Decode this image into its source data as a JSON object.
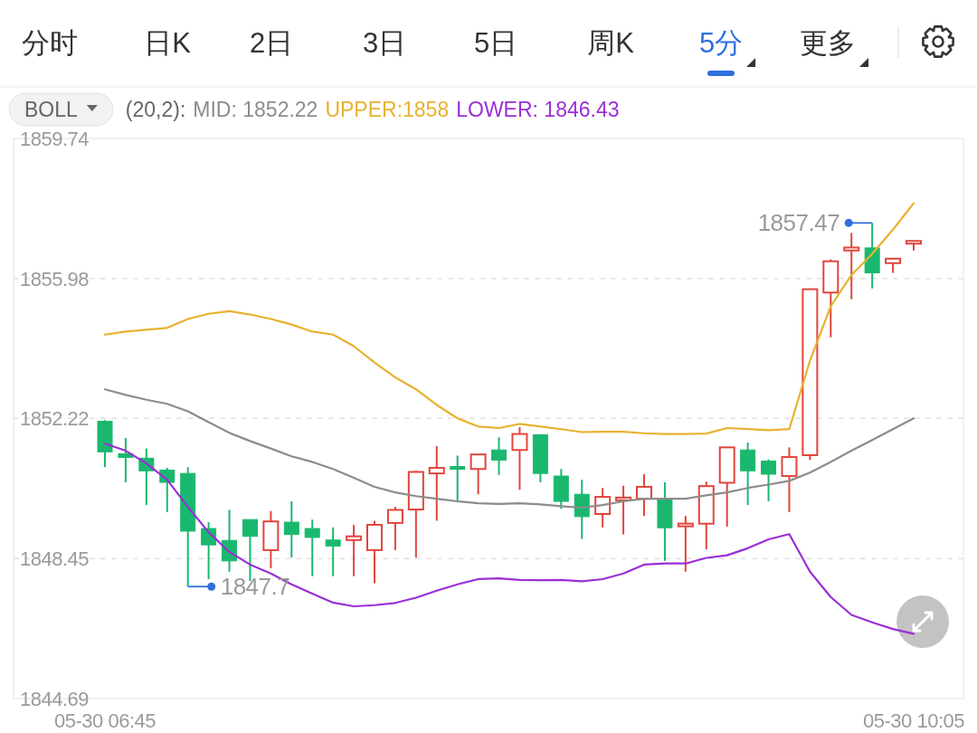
{
  "chart_data": {
    "type": "candlestick",
    "categories": [
      "05-30 06:45",
      null,
      null,
      null,
      null,
      null,
      null,
      null,
      null,
      null,
      null,
      null,
      null,
      null,
      null,
      null,
      null,
      null,
      null,
      null,
      null,
      null,
      null,
      null,
      null,
      null,
      null,
      null,
      null,
      null,
      null,
      null,
      null,
      null,
      null,
      null,
      null,
      null,
      null,
      "05-30 10:05"
    ],
    "ohlc": [
      [
        1852.14,
        1852.17,
        1850.91,
        1851.32
      ],
      [
        1851.27,
        1851.69,
        1850.5,
        1851.17
      ],
      [
        1851.15,
        1851.41,
        1849.89,
        1850.81
      ],
      [
        1850.83,
        1850.89,
        1849.7,
        1850.5
      ],
      [
        1850.74,
        1850.91,
        1847.7,
        1849.19
      ],
      [
        1849.26,
        1849.43,
        1847.9,
        1848.82
      ],
      [
        1848.94,
        1849.76,
        1848.1,
        1848.39
      ],
      [
        1849.5,
        1849.5,
        1847.85,
        1849.05
      ],
      [
        1848.68,
        1849.73,
        1848.19,
        1849.45
      ],
      [
        1849.43,
        1849.99,
        1848.48,
        1849.1
      ],
      [
        1849.26,
        1849.5,
        1847.98,
        1849.02
      ],
      [
        1848.95,
        1849.29,
        1847.98,
        1848.79
      ],
      [
        1848.95,
        1849.36,
        1847.98,
        1849.05
      ],
      [
        1848.68,
        1849.47,
        1847.79,
        1849.36
      ],
      [
        1849.41,
        1849.84,
        1848.68,
        1849.76
      ],
      [
        1849.77,
        1850.81,
        1848.48,
        1850.78
      ],
      [
        1850.74,
        1851.47,
        1849.47,
        1850.89
      ],
      [
        1850.9,
        1851.22,
        1849.99,
        1850.88
      ],
      [
        1850.86,
        1851.25,
        1850.18,
        1851.25
      ],
      [
        1851.37,
        1851.71,
        1850.7,
        1851.1
      ],
      [
        1851.37,
        1851.98,
        1850.3,
        1851.8
      ],
      [
        1851.78,
        1851.78,
        1850.5,
        1850.74
      ],
      [
        1850.67,
        1850.86,
        1849.79,
        1849.99
      ],
      [
        1850.18,
        1850.57,
        1848.98,
        1849.58
      ],
      [
        1849.65,
        1850.35,
        1849.29,
        1850.11
      ],
      [
        1850.04,
        1850.41,
        1849.1,
        1850.07
      ],
      [
        1850.06,
        1850.72,
        1849.6,
        1850.38
      ],
      [
        1850.06,
        1850.5,
        1848.39,
        1849.28
      ],
      [
        1849.34,
        1849.6,
        1848.1,
        1849.37
      ],
      [
        1849.39,
        1850.52,
        1848.7,
        1850.4
      ],
      [
        1850.49,
        1851.44,
        1849.31,
        1851.44
      ],
      [
        1851.37,
        1851.57,
        1849.89,
        1850.81
      ],
      [
        1851.07,
        1851.12,
        1849.99,
        1850.72
      ],
      [
        1850.67,
        1851.44,
        1849.7,
        1851.18
      ],
      [
        1851.23,
        1855.69,
        1851.1,
        1855.69
      ],
      [
        1855.6,
        1856.49,
        1854.4,
        1856.44
      ],
      [
        1856.73,
        1857.2,
        1855.42,
        1856.81
      ],
      [
        1856.8,
        1857.47,
        1855.71,
        1856.13
      ],
      [
        1856.39,
        1856.51,
        1856.13,
        1856.51
      ],
      [
        1856.93,
        1856.97,
        1856.73,
        1856.97
      ]
    ],
    "colors": [
      "#19b86e",
      "#19b86e",
      "#19b86e",
      "#19b86e",
      "#19b86e",
      "#19b86e",
      "#19b86e",
      "#19b86e",
      "#e0453c",
      "#19b86e",
      "#19b86e",
      "#19b86e",
      "#e0453c",
      "#e0453c",
      "#e0453c",
      "#e0453c",
      "#e0453c",
      "#19b86e",
      "#e0453c",
      "#19b86e",
      "#e0453c",
      "#19b86e",
      "#19b86e",
      "#19b86e",
      "#e0453c",
      "#e0453c",
      "#e0453c",
      "#19b86e",
      "#e0453c",
      "#e0453c",
      "#e0453c",
      "#19b86e",
      "#19b86e",
      "#e0453c",
      "#e0453c",
      "#e0453c",
      "#e0453c",
      "#19b86e",
      "#e0453c",
      "#e0453c"
    ],
    "series": [
      {
        "name": "MID: 1852.22",
        "type": "line",
        "color": "#8c8c8c",
        "values": [
          1853.0,
          1852.85,
          1852.72,
          1852.61,
          1852.41,
          1852.12,
          1851.83,
          1851.61,
          1851.41,
          1851.2,
          1851.05,
          1850.86,
          1850.62,
          1850.38,
          1850.23,
          1850.13,
          1850.06,
          1849.99,
          1849.94,
          1849.92,
          1849.94,
          1849.91,
          1849.86,
          1849.82,
          1849.89,
          1849.99,
          1850.06,
          1850.06,
          1850.06,
          1850.15,
          1850.23,
          1850.35,
          1850.44,
          1850.54,
          1850.76,
          1851.05,
          1851.35,
          1851.64,
          1851.93,
          1852.22
        ]
      },
      {
        "name": "UPPER:1858",
        "type": "line",
        "color": "#e8b12e",
        "values": [
          1854.47,
          1854.55,
          1854.6,
          1854.65,
          1854.89,
          1855.03,
          1855.1,
          1855.01,
          1854.89,
          1854.74,
          1854.55,
          1854.47,
          1854.16,
          1853.72,
          1853.32,
          1853.0,
          1852.58,
          1852.22,
          1852.0,
          1851.96,
          1852.07,
          1852.0,
          1851.93,
          1851.85,
          1851.86,
          1851.86,
          1851.82,
          1851.8,
          1851.8,
          1851.81,
          1851.96,
          1851.93,
          1851.9,
          1851.93,
          1853.77,
          1855.23,
          1856.07,
          1856.64,
          1857.29,
          1858.0
        ]
      },
      {
        "name": "LOWER: 1846.43",
        "type": "line",
        "color": "#9a2fd6",
        "values": [
          1851.54,
          1851.35,
          1851.01,
          1850.57,
          1849.84,
          1849.16,
          1848.63,
          1848.29,
          1848.05,
          1847.76,
          1847.51,
          1847.27,
          1847.17,
          1847.2,
          1847.26,
          1847.4,
          1847.59,
          1847.76,
          1847.9,
          1847.92,
          1847.88,
          1847.87,
          1847.88,
          1847.84,
          1847.9,
          1848.05,
          1848.29,
          1848.32,
          1848.32,
          1848.47,
          1848.54,
          1848.73,
          1848.97,
          1849.11,
          1848.1,
          1847.42,
          1846.94,
          1846.74,
          1846.56,
          1846.43
        ]
      }
    ],
    "legend_title": "BOLL",
    "legend": "top left",
    "ylim": [
      1844.69,
      1859.74
    ],
    "yticks": [
      1844.69,
      1848.45,
      1852.22,
      1855.98,
      1859.74
    ],
    "grid": "y",
    "marker": "none",
    "line_style": "solid",
    "annotations": [
      "分时",
      "日K",
      "2日",
      "3日",
      "5日",
      "周K",
      "5分",
      "更多",
      "(20,2):",
      "1857.47",
      "1847.7"
    ]
  }
}
